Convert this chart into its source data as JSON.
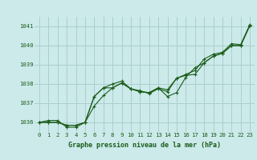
{
  "xlabel": "Graphe pression niveau de la mer (hPa)",
  "background_color": "#cceaea",
  "grid_color": "#aacece",
  "line_color": "#1a5c1a",
  "text_color": "#1a5c1a",
  "ylim": [
    1035.5,
    1041.5
  ],
  "xlim": [
    -0.5,
    23.5
  ],
  "yticks": [
    1036,
    1037,
    1038,
    1039,
    1040,
    1041
  ],
  "xticks": [
    0,
    1,
    2,
    3,
    4,
    5,
    6,
    7,
    8,
    9,
    10,
    11,
    12,
    13,
    14,
    15,
    16,
    17,
    18,
    19,
    20,
    21,
    22,
    23
  ],
  "series": [
    [
      1036.0,
      1036.0,
      1036.0,
      1035.85,
      1035.85,
      1036.0,
      1036.85,
      1037.4,
      1037.8,
      1038.05,
      1037.75,
      1037.6,
      1037.55,
      1037.8,
      1037.7,
      1038.3,
      1038.45,
      1038.5,
      1039.1,
      1039.45,
      1039.6,
      1040.0,
      1040.0,
      1041.05
    ],
    [
      1036.0,
      1036.0,
      1036.0,
      1035.85,
      1035.85,
      1036.0,
      1037.35,
      1037.8,
      1037.8,
      1038.05,
      1037.75,
      1037.6,
      1037.55,
      1037.8,
      1037.35,
      1037.55,
      1038.35,
      1038.85,
      1039.1,
      1039.45,
      1039.6,
      1040.0,
      1040.0,
      1041.05
    ],
    [
      1036.0,
      1036.1,
      1036.1,
      1035.75,
      1035.75,
      1036.0,
      1037.35,
      1037.8,
      1038.0,
      1038.15,
      1037.75,
      1037.65,
      1037.5,
      1037.75,
      1037.6,
      1038.3,
      1038.5,
      1038.7,
      1039.3,
      1039.55,
      1039.65,
      1040.1,
      1040.05,
      1041.1
    ]
  ]
}
